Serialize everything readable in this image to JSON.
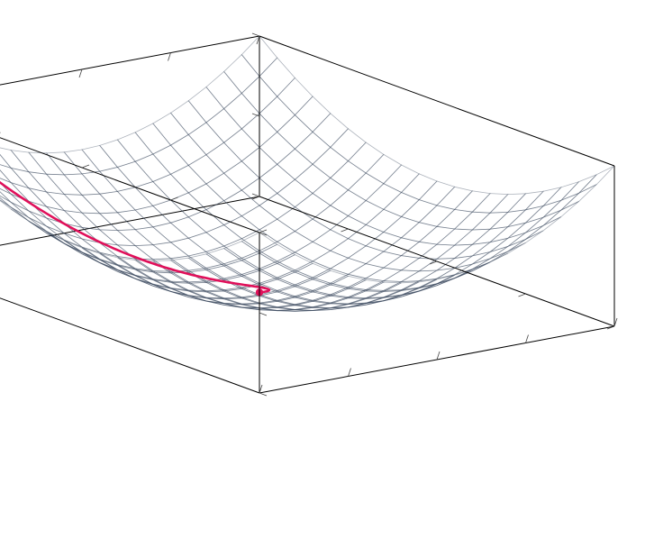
{
  "chart_data": {
    "type": "surface",
    "function": "z = x^2 + y^2",
    "x_range": [
      -1,
      1
    ],
    "y_range": [
      -1,
      1
    ],
    "z_range": [
      0,
      2
    ],
    "grid_divisions": 20,
    "axes_box": true,
    "tick_labels": false,
    "title": "",
    "xlabel": "",
    "ylabel": "",
    "zlabel": "",
    "colormap": {
      "low": "#f7f6fb",
      "mid": "#b9d3e8",
      "high": "#2e7fb3"
    },
    "trajectory": {
      "color": "#e0105a",
      "start": [
        -0.85,
        0.85
      ],
      "end": [
        0.0,
        0.0
      ],
      "end_marker": "dot"
    }
  }
}
